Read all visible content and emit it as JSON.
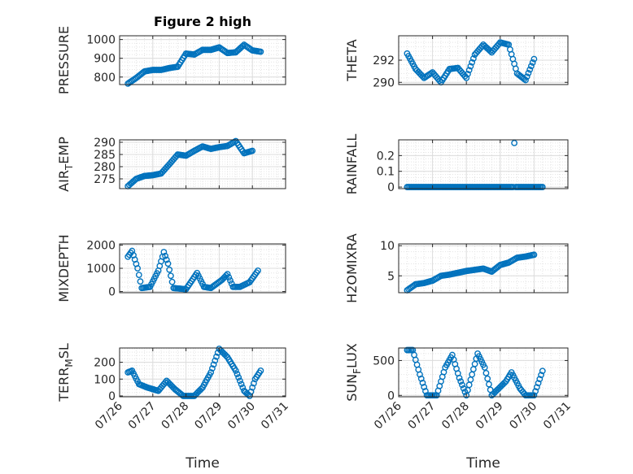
{
  "chart_data": [
    {
      "type": "scatter",
      "title": "Figure 2 high",
      "ylabel": "PRESSURE",
      "ylim": [
        760,
        1020
      ],
      "yticks": [
        800,
        900,
        1000
      ],
      "ytick_labels": [
        "800",
        "900",
        "1000"
      ],
      "xlim": [
        "2020-07-26",
        "2020-07-31"
      ],
      "xtick_labels": [],
      "grid": true,
      "marker": "open-circle",
      "color": "#0072BD",
      "points": [
        [
          "07/26 06:00",
          765
        ],
        [
          "07/26 12:00",
          795
        ],
        [
          "07/26 18:00",
          830
        ],
        [
          "07/27 00:00",
          838
        ],
        [
          "07/27 06:00",
          838
        ],
        [
          "07/27 12:00",
          848
        ],
        [
          "07/27 18:00",
          855
        ],
        [
          "07/28 00:00",
          925
        ],
        [
          "07/28 06:00",
          920
        ],
        [
          "07/28 12:00",
          945
        ],
        [
          "07/28 18:00",
          945
        ],
        [
          "07/29 00:00",
          958
        ],
        [
          "07/29 06:00",
          928
        ],
        [
          "07/29 12:00",
          932
        ],
        [
          "07/29 18:00",
          972
        ],
        [
          "07/30 00:00",
          942
        ],
        [
          "07/30 06:00",
          935
        ]
      ]
    },
    {
      "type": "scatter",
      "title": "",
      "ylabel": "THETA",
      "ylim": [
        289.8,
        294.2
      ],
      "yticks": [
        290,
        292
      ],
      "ytick_labels": [
        "290",
        "292"
      ],
      "xlim": [
        "2020-07-26",
        "2020-07-31"
      ],
      "xtick_labels": [],
      "grid": true,
      "marker": "open-circle",
      "color": "#0072BD",
      "points": [
        [
          "07/26 06:00",
          292.6
        ],
        [
          "07/26 12:00",
          291.2
        ],
        [
          "07/26 18:00",
          290.4
        ],
        [
          "07/27 00:00",
          290.9
        ],
        [
          "07/27 06:00",
          290.0
        ],
        [
          "07/27 12:00",
          291.2
        ],
        [
          "07/27 18:00",
          291.3
        ],
        [
          "07/28 00:00",
          290.4
        ],
        [
          "07/28 06:00",
          292.5
        ],
        [
          "07/28 12:00",
          293.4
        ],
        [
          "07/28 18:00",
          292.7
        ],
        [
          "07/29 00:00",
          293.6
        ],
        [
          "07/29 06:00",
          293.4
        ],
        [
          "07/29 12:00",
          290.8
        ],
        [
          "07/29 18:00",
          290.2
        ],
        [
          "07/30 00:00",
          292.1
        ]
      ]
    },
    {
      "type": "scatter",
      "title": "",
      "ylabel": "AIR_TEMP",
      "ylabel_main": "AIR",
      "ylabel_sub": "T",
      "ylabel_rest": "EMP",
      "ylim": [
        271,
        291
      ],
      "yticks": [
        275,
        280,
        285,
        290
      ],
      "ytick_labels": [
        "275",
        "280",
        "285",
        "290"
      ],
      "xlim": [
        "2020-07-26",
        "2020-07-31"
      ],
      "xtick_labels": [],
      "grid": true,
      "marker": "open-circle",
      "color": "#0072BD",
      "points": [
        [
          "07/26 06:00",
          272
        ],
        [
          "07/26 12:00",
          275
        ],
        [
          "07/26 18:00",
          276.2
        ],
        [
          "07/27 00:00",
          276.5
        ],
        [
          "07/27 06:00",
          277.2
        ],
        [
          "07/27 12:00",
          281
        ],
        [
          "07/27 18:00",
          285
        ],
        [
          "07/28 00:00",
          284.5
        ],
        [
          "07/28 06:00",
          286.5
        ],
        [
          "07/28 12:00",
          288.3
        ],
        [
          "07/28 18:00",
          287.3
        ],
        [
          "07/29 00:00",
          288
        ],
        [
          "07/29 06:00",
          288.5
        ],
        [
          "07/29 12:00",
          290.5
        ],
        [
          "07/29 18:00",
          285.5
        ],
        [
          "07/30 00:00",
          286.5
        ]
      ]
    },
    {
      "type": "scatter",
      "title": "",
      "ylabel": "RAINFALL",
      "ylim": [
        -0.01,
        0.3
      ],
      "yticks": [
        0,
        0.1,
        0.2
      ],
      "ytick_labels": [
        "0",
        "0.1",
        "0.2"
      ],
      "xlim": [
        "2020-07-26",
        "2020-07-31"
      ],
      "xtick_labels": [],
      "grid": true,
      "marker": "open-circle",
      "color": "#0072BD",
      "points": [
        [
          "07/26 06:00",
          0
        ],
        [
          "07/26 18:00",
          0
        ],
        [
          "07/27 06:00",
          0
        ],
        [
          "07/27 18:00",
          0
        ],
        [
          "07/28 06:00",
          0
        ],
        [
          "07/28 18:00",
          0
        ],
        [
          "07/29 06:00",
          0
        ],
        [
          "07/29 10:00",
          0.28
        ],
        [
          "07/29 18:00",
          0
        ],
        [
          "07/30 06:00",
          0
        ]
      ]
    },
    {
      "type": "scatter",
      "title": "",
      "ylabel": "MIXDEPTH",
      "ylim": [
        -50,
        2050
      ],
      "yticks": [
        0,
        1000,
        2000
      ],
      "ytick_labels": [
        "0",
        "1000",
        "2000"
      ],
      "xlim": [
        "2020-07-26",
        "2020-07-31"
      ],
      "xtick_labels": [],
      "grid": true,
      "marker": "open-circle",
      "color": "#0072BD",
      "points": [
        [
          "07/26 06:00",
          1500
        ],
        [
          "07/26 09:00",
          1750
        ],
        [
          "07/26 13:00",
          1000
        ],
        [
          "07/26 16:00",
          150
        ],
        [
          "07/26 22:00",
          200
        ],
        [
          "07/27 04:00",
          900
        ],
        [
          "07/27 08:00",
          1700
        ],
        [
          "07/27 11:00",
          1200
        ],
        [
          "07/27 15:00",
          150
        ],
        [
          "07/28 00:00",
          100
        ],
        [
          "07/28 08:00",
          800
        ],
        [
          "07/28 13:00",
          200
        ],
        [
          "07/28 18:00",
          150
        ],
        [
          "07/29 02:00",
          500
        ],
        [
          "07/29 06:00",
          750
        ],
        [
          "07/29 10:00",
          200
        ],
        [
          "07/29 15:00",
          200
        ],
        [
          "07/29 22:00",
          400
        ],
        [
          "07/30 04:00",
          900
        ]
      ]
    },
    {
      "type": "scatter",
      "title": "",
      "ylabel": "H2OMIXRA",
      "ylim": [
        2.2,
        10.3
      ],
      "yticks": [
        5,
        10
      ],
      "ytick_labels": [
        "5",
        "10"
      ],
      "xlim": [
        "2020-07-26",
        "2020-07-31"
      ],
      "xtick_labels": [],
      "grid": true,
      "marker": "open-circle",
      "color": "#0072BD",
      "points": [
        [
          "07/26 06:00",
          2.6
        ],
        [
          "07/26 12:00",
          3.6
        ],
        [
          "07/26 18:00",
          3.8
        ],
        [
          "07/27 00:00",
          4.2
        ],
        [
          "07/27 06:00",
          5.0
        ],
        [
          "07/27 12:00",
          5.2
        ],
        [
          "07/27 18:00",
          5.5
        ],
        [
          "07/28 00:00",
          5.8
        ],
        [
          "07/28 06:00",
          6.0
        ],
        [
          "07/28 12:00",
          6.2
        ],
        [
          "07/28 18:00",
          5.7
        ],
        [
          "07/29 00:00",
          6.8
        ],
        [
          "07/29 06:00",
          7.2
        ],
        [
          "07/29 12:00",
          8.0
        ],
        [
          "07/29 18:00",
          8.2
        ],
        [
          "07/30 00:00",
          8.5
        ]
      ]
    },
    {
      "type": "scatter",
      "title": "",
      "ylabel": "TERR_MSL",
      "ylabel_main": "TERR",
      "ylabel_sub": "M",
      "ylabel_rest": "SL",
      "ylim": [
        -5,
        285
      ],
      "yticks": [
        0,
        100,
        200
      ],
      "ytick_labels": [
        "0",
        "100",
        "200"
      ],
      "xlim": [
        "2020-07-26",
        "2020-07-31"
      ],
      "xtick_labels": [
        "07/26",
        "07/27",
        "07/28",
        "07/29",
        "07/30",
        "07/31"
      ],
      "xlabel": "Time",
      "grid": true,
      "marker": "open-circle",
      "color": "#0072BD",
      "points": [
        [
          "07/26 06:00",
          140
        ],
        [
          "07/26 09:00",
          150
        ],
        [
          "07/26 14:00",
          70
        ],
        [
          "07/26 20:00",
          50
        ],
        [
          "07/27 04:00",
          30
        ],
        [
          "07/27 10:00",
          90
        ],
        [
          "07/27 16:00",
          40
        ],
        [
          "07/27 22:00",
          0
        ],
        [
          "07/28 06:00",
          0
        ],
        [
          "07/28 12:00",
          50
        ],
        [
          "07/28 18:00",
          140
        ],
        [
          "07/29 00:00",
          280
        ],
        [
          "07/29 06:00",
          230
        ],
        [
          "07/29 12:00",
          150
        ],
        [
          "07/29 18:00",
          30
        ],
        [
          "07/29 22:00",
          0
        ],
        [
          "07/30 02:00",
          100
        ],
        [
          "07/30 06:00",
          150
        ]
      ]
    },
    {
      "type": "scatter",
      "title": "",
      "ylabel": "SUN_FLUX",
      "ylabel_main": "SUN",
      "ylabel_sub": "F",
      "ylabel_rest": "LUX",
      "ylim": [
        -20,
        680
      ],
      "yticks": [
        0,
        500
      ],
      "ytick_labels": [
        "0",
        "500"
      ],
      "xlim": [
        "2020-07-26",
        "2020-07-31"
      ],
      "xtick_labels": [
        "07/26",
        "07/27",
        "07/28",
        "07/29",
        "07/30",
        "07/31"
      ],
      "xlabel": "Time",
      "grid": true,
      "marker": "open-circle",
      "color": "#0072BD",
      "points": [
        [
          "07/26 06:00",
          650
        ],
        [
          "07/26 10:00",
          650
        ],
        [
          "07/26 15:00",
          300
        ],
        [
          "07/26 20:00",
          0
        ],
        [
          "07/27 03:00",
          0
        ],
        [
          "07/27 09:00",
          400
        ],
        [
          "07/27 14:00",
          580
        ],
        [
          "07/27 19:00",
          250
        ],
        [
          "07/28 00:00",
          0
        ],
        [
          "07/28 08:00",
          600
        ],
        [
          "07/28 13:00",
          400
        ],
        [
          "07/28 18:00",
          0
        ],
        [
          "07/29 04:00",
          200
        ],
        [
          "07/29 08:00",
          330
        ],
        [
          "07/29 14:00",
          100
        ],
        [
          "07/29 18:00",
          0
        ],
        [
          "07/30 00:00",
          0
        ],
        [
          "07/30 06:00",
          350
        ]
      ]
    }
  ]
}
